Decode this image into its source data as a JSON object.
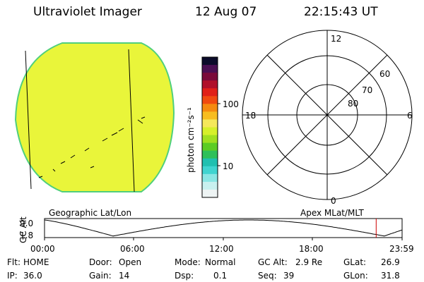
{
  "header": {
    "instrument": "Ultraviolet Imager",
    "date": "12 Aug 07",
    "time": "22:15:43 UT"
  },
  "colorbar": {
    "unit_label": "photon cm⁻²s⁻¹",
    "tick_100": "100",
    "tick_10": "10",
    "colors": [
      "#0b0b2a",
      "#4a0f52",
      "#7a0a3a",
      "#b0102a",
      "#e02018",
      "#f04a10",
      "#f58a10",
      "#f7bd20",
      "#f5e85a",
      "#d6f02a",
      "#a0e020",
      "#5ccc24",
      "#2ec05a",
      "#20c0b0",
      "#40d4d0",
      "#8ae6e4",
      "#c8f0ef",
      "#eef4f4"
    ]
  },
  "left_panel": {
    "caption": "Geographic Lat/Lon",
    "disk_color": "#e9f53a",
    "rim_color": "#4fcf7c"
  },
  "right_panel": {
    "caption": "Apex MLat/MLT",
    "mlt_top": "12",
    "mlt_left": "18",
    "mlt_right": "6",
    "mlt_bottom": "0",
    "lat_60": "60",
    "lat_70": "70",
    "lat_80": "80"
  },
  "altitude_plot": {
    "ylabel": "GC Alt",
    "y_top": "9.0",
    "y_bottom": "1.8",
    "x_ticks": [
      "00:00",
      "06:00",
      "12:00",
      "18:00",
      "23:59"
    ],
    "current_time_marker_hours": 22.26,
    "marker_color": "#cc0000"
  },
  "footer": {
    "flt_label": "Flt:",
    "flt_value": "HOME",
    "ip_label": "IP:",
    "ip_value": "36.0",
    "door_label": "Door:",
    "door_value": "Open",
    "gain_label": "Gain:",
    "gain_value": "14",
    "mode_label": "Mode:",
    "mode_value": "Normal",
    "dsp_label": "Dsp:",
    "dsp_value": "0.1",
    "gcalt_label": "GC Alt:",
    "gcalt_value": "2.9 Re",
    "seq_label": "Seq:",
    "seq_value": "39",
    "glat_label": "GLat:",
    "glat_value": "26.9",
    "glon_label": "GLon:",
    "glon_value": "31.8"
  }
}
